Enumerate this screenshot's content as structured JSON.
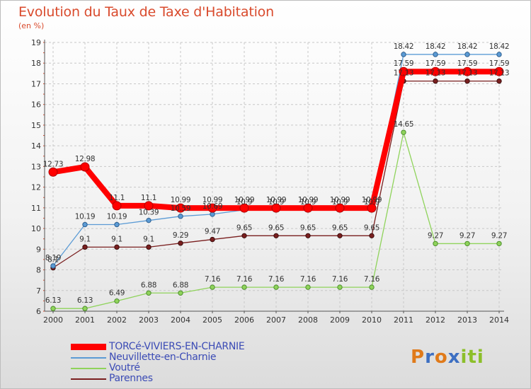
{
  "header": {
    "title": "Evolution du Taux de Taxe d'Habitation",
    "subtitle": "(en %)"
  },
  "logo": {
    "text": "Proxiti"
  },
  "chart_data": {
    "type": "line",
    "title": "Evolution du Taux de Taxe d'Habitation",
    "ylabel": "(en %)",
    "xlabel": "",
    "x": [
      "2000",
      "2001",
      "2002",
      "2003",
      "2004",
      "2005",
      "2006",
      "2007",
      "2008",
      "2009",
      "2010",
      "2011",
      "2012",
      "2013",
      "2014"
    ],
    "ylim": [
      6,
      19
    ],
    "yticks": [
      "6",
      "7",
      "8",
      "9",
      "10",
      "11",
      "12",
      "13",
      "14",
      "15",
      "16",
      "17",
      "18",
      "19"
    ],
    "grid": true,
    "legend_position": "bottom-left",
    "series": [
      {
        "name": "TORCé-VIVIERS-EN-CHARNIE",
        "color": "#ff0000",
        "values": [
          12.73,
          12.98,
          11.1,
          11.1,
          10.99,
          10.99,
          10.99,
          10.99,
          10.99,
          10.99,
          10.99,
          17.59,
          17.59,
          17.59,
          17.59
        ],
        "labels": [
          "12.73",
          "12.98",
          "11.1",
          "11.1",
          "10.99",
          "10.99",
          "10.99",
          "10.99",
          "10.99",
          "10.99",
          "10.99",
          "17.59",
          "17.59",
          "17.59",
          "17.59"
        ]
      },
      {
        "name": "Neuvillette-en-Charnie",
        "color": "#5b9bd5",
        "values": [
          8.19,
          10.19,
          10.19,
          10.39,
          10.59,
          10.69,
          10.9,
          10.9,
          10.9,
          10.9,
          10.9,
          18.42,
          18.42,
          18.42,
          18.42
        ],
        "labels": [
          "8.19",
          "10.19",
          "10.19",
          "10.39",
          "10.59",
          "10.69",
          "10.9",
          "10.9",
          "10.9",
          "10.9",
          "10.9",
          "18.42",
          "18.42",
          "18.42",
          "18.42"
        ]
      },
      {
        "name": "Voutré",
        "color": "#8fd35b",
        "values": [
          6.13,
          6.13,
          6.49,
          6.88,
          6.88,
          7.16,
          7.16,
          7.16,
          7.16,
          7.16,
          7.16,
          14.65,
          9.27,
          9.27,
          9.27
        ],
        "labels": [
          "6.13",
          "6.13",
          "6.49",
          "6.88",
          "6.88",
          "7.16",
          "7.16",
          "7.16",
          "7.16",
          "7.16",
          "7.16",
          "14.65",
          "9.27",
          "9.27",
          "9.27"
        ]
      },
      {
        "name": "Parennes",
        "color": "#7a1f1f",
        "values": [
          8.1,
          9.1,
          9.1,
          9.1,
          9.29,
          9.47,
          9.65,
          9.65,
          9.65,
          9.65,
          9.65,
          17.13,
          17.13,
          17.13,
          17.13
        ],
        "labels": [
          "8.1",
          "9.1",
          "9.1",
          "9.1",
          "9.29",
          "9.47",
          "9.65",
          "9.65",
          "9.65",
          "9.65",
          "9.65",
          "17.13",
          "17.13",
          "17.13",
          "17.13"
        ]
      }
    ]
  }
}
